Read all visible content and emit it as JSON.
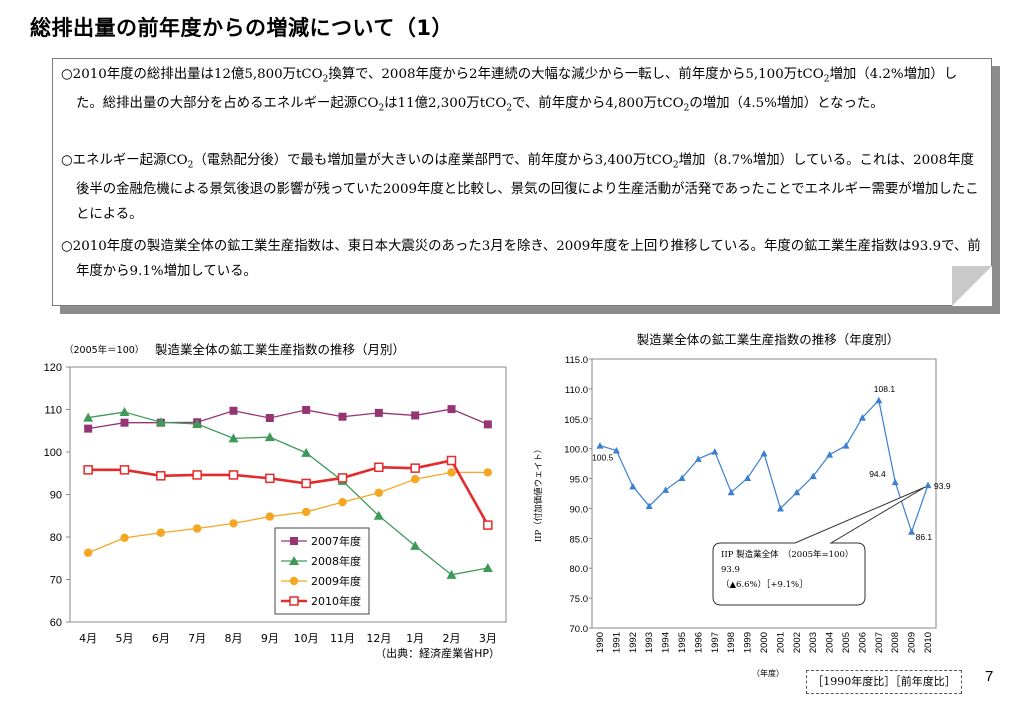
{
  "page": {
    "title": "総排出量の前年度からの増減について（1）",
    "page_number": "7",
    "comparison_basis": "［1990年度比］［前年度比］"
  },
  "summary": {
    "p1": [
      "○2010年度の総排出量は12億5,800万tCO",
      "2",
      "換算で、2008年度から2年連続の大幅な減少から一転し、前年度から5,100万tCO",
      "2",
      "増加（4.2%増加）した。総排出量の大部分を占めるエネルギー起源CO",
      "2",
      "は11億2,300万tCO",
      "2",
      "で、前年度から4,800万tCO",
      "2",
      "の増加（4.5%増加）となった。"
    ],
    "p2": [
      "○エネルギー起源CO",
      "2",
      "（電熱配分後）で最も増加量が大きいのは産業部門で、前年度から3,400万tCO",
      "2",
      "増加（8.7%増加）している。これは、2008年度後半の金融危機による景気後退の影響が残っていた2009年度と比較し、景気の回復により生産活動が活発であったことでエネルギー需要が増加したことによる。"
    ],
    "p3": "○2010年度の製造業全体の鉱工業生産指数は、東日本大震災のあった3月を除き、2009年度を上回り推移している。年度の鉱工業生産指数は93.9で、前年度から9.1%増加している。"
  },
  "chart_data": [
    {
      "type": "line",
      "title": "製造業全体の鉱工業生産指数の推移（月別）",
      "unit_label": "（2005年＝100）",
      "source": "（出典：経済産業省HP）",
      "categories": [
        "4月",
        "5月",
        "6月",
        "7月",
        "8月",
        "9月",
        "10月",
        "11月",
        "12月",
        "1月",
        "2月",
        "3月"
      ],
      "ylim": [
        60,
        120
      ],
      "yticks": [
        60,
        70,
        80,
        90,
        100,
        110,
        120
      ],
      "grid": false,
      "legend": "bottom-center",
      "series": [
        {
          "name": "2007年度",
          "color": "#953572",
          "marker": "square",
          "values": [
            105.5,
            106.9,
            106.9,
            107.0,
            109.7,
            108.0,
            109.9,
            108.3,
            109.2,
            108.6,
            110.1,
            106.5
          ]
        },
        {
          "name": "2008年度",
          "color": "#3f9a5a",
          "marker": "triangle",
          "values": [
            108.1,
            109.4,
            107.0,
            106.6,
            103.2,
            103.5,
            99.8,
            93.2,
            85.0,
            77.9,
            71.1,
            72.7
          ]
        },
        {
          "name": "2009年度",
          "color": "#f5a623",
          "marker": "circle",
          "values": [
            76.3,
            79.8,
            81.0,
            82.0,
            83.2,
            84.8,
            85.9,
            88.2,
            90.4,
            93.6,
            95.2,
            95.2
          ]
        },
        {
          "name": "2010年度",
          "color": "#e32b2b",
          "marker": "open-square",
          "values": [
            95.8,
            95.8,
            94.4,
            94.6,
            94.6,
            93.8,
            92.6,
            93.9,
            96.4,
            96.2,
            98.0,
            82.8
          ]
        }
      ]
    },
    {
      "type": "line",
      "title": "製造業全体の鉱工業生産指数の推移（年度別）",
      "ylabel": "IIP（付加価値ウェイト）",
      "xlabel": "（年度）",
      "ylim": [
        70.0,
        115.0
      ],
      "yticks": [
        "70.0",
        "75.0",
        "80.0",
        "85.0",
        "90.0",
        "95.0",
        "100.0",
        "105.0",
        "110.0",
        "115.0"
      ],
      "categories": [
        "1990",
        "1991",
        "1992",
        "1993",
        "1994",
        "1995",
        "1996",
        "1997",
        "1998",
        "1999",
        "2000",
        "2001",
        "2002",
        "2003",
        "2004",
        "2005",
        "2006",
        "2007",
        "2008",
        "2009",
        "2010"
      ],
      "series": [
        {
          "name": "",
          "color": "#3b7fd0",
          "marker": "triangle",
          "values": [
            100.5,
            99.7,
            93.7,
            90.4,
            93.1,
            95.1,
            98.3,
            99.5,
            92.7,
            95.1,
            99.2,
            90.0,
            92.7,
            95.4,
            99.0,
            100.5,
            105.2,
            108.1,
            94.4,
            86.1,
            93.9
          ]
        }
      ],
      "point_labels": {
        "1990": "100.5",
        "2007": "108.1",
        "2008": "94.4",
        "2009": "86.1",
        "2010": "93.9"
      },
      "callout": [
        "IIP 製造業全体　（2005年=100）",
        "93.9",
        "（▲6.6%）［+9.1%］"
      ]
    }
  ]
}
